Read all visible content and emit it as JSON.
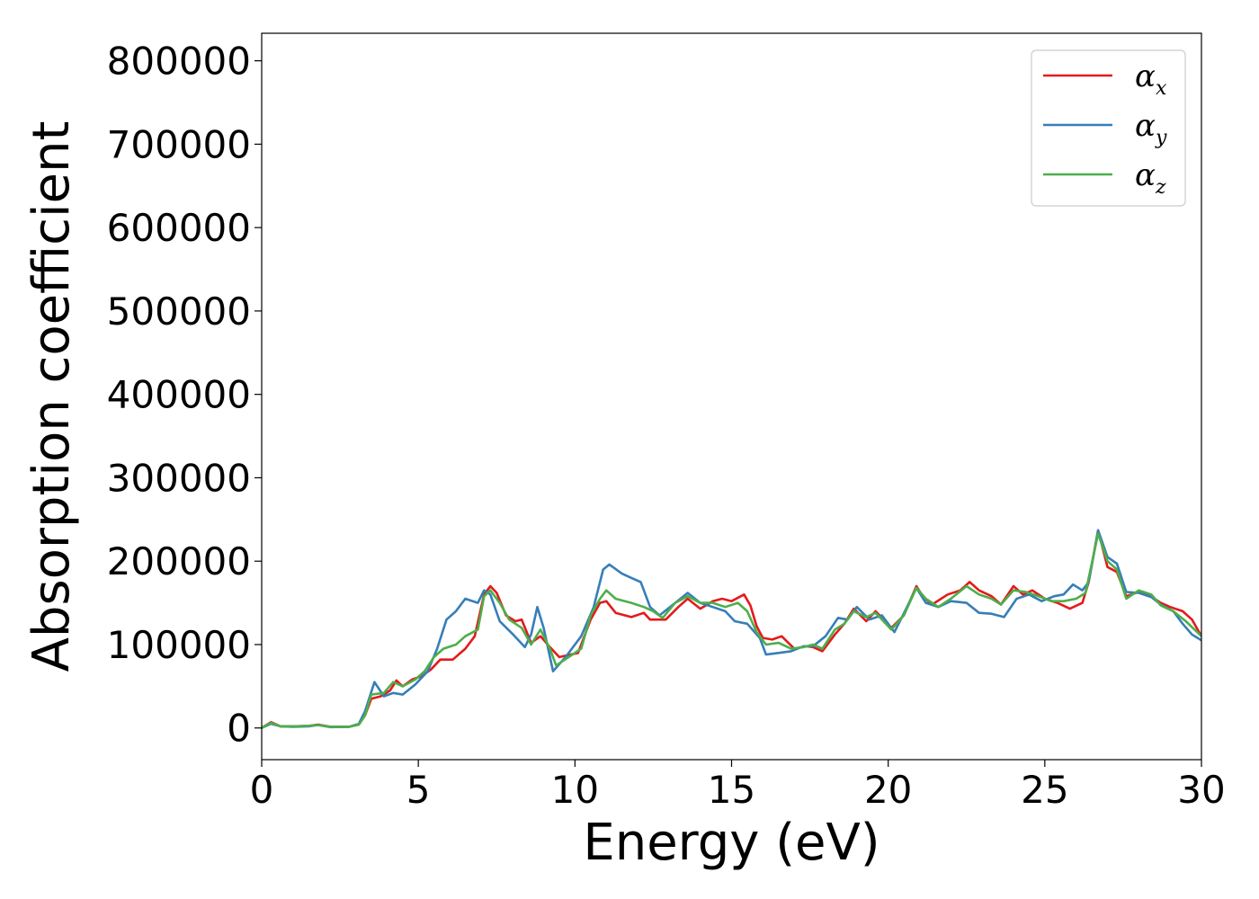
{
  "chart_data": {
    "type": "line",
    "xlabel": "Energy (eV)",
    "ylabel": "Absorption coefficient",
    "xlim": [
      0,
      30
    ],
    "ylim": [
      -38000,
      833000
    ],
    "xticks": [
      0,
      5,
      10,
      15,
      20,
      25,
      30
    ],
    "yticks": [
      0,
      100000,
      200000,
      300000,
      400000,
      500000,
      600000,
      700000,
      800000
    ],
    "legend_position": "top-right",
    "grid": false,
    "series": [
      {
        "name": "αx",
        "base": "α",
        "sub": "x",
        "color": "#e41a1c",
        "points": [
          [
            0,
            0
          ],
          [
            0.3,
            7000
          ],
          [
            0.6,
            2000
          ],
          [
            1,
            2000
          ],
          [
            1.5,
            2500
          ],
          [
            1.8,
            4000
          ],
          [
            2.2,
            1500
          ],
          [
            2.8,
            1500
          ],
          [
            3.1,
            4000
          ],
          [
            3.3,
            15000
          ],
          [
            3.5,
            35000
          ],
          [
            3.8,
            38000
          ],
          [
            4.1,
            45000
          ],
          [
            4.3,
            57000
          ],
          [
            4.5,
            50000
          ],
          [
            4.8,
            58000
          ],
          [
            5.1,
            62000
          ],
          [
            5.4,
            70000
          ],
          [
            5.7,
            82000
          ],
          [
            6.1,
            82000
          ],
          [
            6.5,
            95000
          ],
          [
            6.8,
            110000
          ],
          [
            7.1,
            160000
          ],
          [
            7.3,
            170000
          ],
          [
            7.5,
            162000
          ],
          [
            7.8,
            135000
          ],
          [
            8.1,
            128000
          ],
          [
            8.3,
            130000
          ],
          [
            8.6,
            102000
          ],
          [
            8.9,
            110000
          ],
          [
            9.2,
            97000
          ],
          [
            9.5,
            85000
          ],
          [
            10.1,
            90000
          ],
          [
            10.5,
            130000
          ],
          [
            10.8,
            150000
          ],
          [
            11.0,
            152000
          ],
          [
            11.3,
            138000
          ],
          [
            11.8,
            133000
          ],
          [
            12.2,
            138000
          ],
          [
            12.4,
            130000
          ],
          [
            12.9,
            130000
          ],
          [
            13.3,
            145000
          ],
          [
            13.6,
            155000
          ],
          [
            14.0,
            143000
          ],
          [
            14.4,
            152000
          ],
          [
            14.7,
            155000
          ],
          [
            15.0,
            152000
          ],
          [
            15.4,
            160000
          ],
          [
            15.6,
            147000
          ],
          [
            15.8,
            122000
          ],
          [
            16.0,
            108000
          ],
          [
            16.3,
            106000
          ],
          [
            16.6,
            110000
          ],
          [
            17.0,
            95000
          ],
          [
            17.4,
            98000
          ],
          [
            17.6,
            97000
          ],
          [
            17.9,
            92000
          ],
          [
            18.3,
            112000
          ],
          [
            18.6,
            125000
          ],
          [
            18.9,
            143000
          ],
          [
            19.3,
            128000
          ],
          [
            19.6,
            140000
          ],
          [
            20.1,
            120000
          ],
          [
            20.5,
            135000
          ],
          [
            20.9,
            170000
          ],
          [
            21.1,
            158000
          ],
          [
            21.4,
            148000
          ],
          [
            21.9,
            160000
          ],
          [
            22.3,
            165000
          ],
          [
            22.6,
            175000
          ],
          [
            22.9,
            165000
          ],
          [
            23.3,
            158000
          ],
          [
            23.6,
            148000
          ],
          [
            24.0,
            170000
          ],
          [
            24.3,
            160000
          ],
          [
            24.6,
            165000
          ],
          [
            25.0,
            155000
          ],
          [
            25.4,
            150000
          ],
          [
            25.8,
            143000
          ],
          [
            26.2,
            150000
          ],
          [
            26.4,
            175000
          ],
          [
            26.7,
            237000
          ],
          [
            27.0,
            193000
          ],
          [
            27.3,
            187000
          ],
          [
            27.6,
            158000
          ],
          [
            28.0,
            163000
          ],
          [
            28.3,
            160000
          ],
          [
            28.7,
            150000
          ],
          [
            29.0,
            145000
          ],
          [
            29.4,
            140000
          ],
          [
            29.7,
            130000
          ],
          [
            30,
            110000
          ]
        ]
      },
      {
        "name": "αy",
        "base": "α",
        "sub": "y",
        "color": "#377eb8",
        "points": [
          [
            0,
            0
          ],
          [
            0.3,
            5000
          ],
          [
            0.6,
            2000
          ],
          [
            1,
            1500
          ],
          [
            1.5,
            2000
          ],
          [
            1.8,
            3500
          ],
          [
            2.2,
            1000
          ],
          [
            2.8,
            1500
          ],
          [
            3.1,
            5000
          ],
          [
            3.3,
            20000
          ],
          [
            3.6,
            55000
          ],
          [
            3.9,
            38000
          ],
          [
            4.2,
            42000
          ],
          [
            4.5,
            40000
          ],
          [
            4.9,
            52000
          ],
          [
            5.3,
            68000
          ],
          [
            5.6,
            95000
          ],
          [
            5.9,
            130000
          ],
          [
            6.2,
            140000
          ],
          [
            6.5,
            155000
          ],
          [
            6.9,
            150000
          ],
          [
            7.1,
            165000
          ],
          [
            7.3,
            160000
          ],
          [
            7.6,
            128000
          ],
          [
            8.0,
            113000
          ],
          [
            8.4,
            97000
          ],
          [
            8.6,
            112000
          ],
          [
            8.8,
            145000
          ],
          [
            9.0,
            120000
          ],
          [
            9.3,
            68000
          ],
          [
            9.7,
            85000
          ],
          [
            10.2,
            110000
          ],
          [
            10.6,
            145000
          ],
          [
            10.9,
            190000
          ],
          [
            11.1,
            196000
          ],
          [
            11.5,
            185000
          ],
          [
            11.8,
            180000
          ],
          [
            12.1,
            175000
          ],
          [
            12.4,
            145000
          ],
          [
            12.7,
            135000
          ],
          [
            13.2,
            150000
          ],
          [
            13.6,
            162000
          ],
          [
            14.0,
            150000
          ],
          [
            14.4,
            145000
          ],
          [
            14.8,
            140000
          ],
          [
            15.1,
            128000
          ],
          [
            15.5,
            125000
          ],
          [
            15.9,
            108000
          ],
          [
            16.1,
            88000
          ],
          [
            16.5,
            90000
          ],
          [
            16.9,
            92000
          ],
          [
            17.3,
            98000
          ],
          [
            17.6,
            98000
          ],
          [
            18.0,
            110000
          ],
          [
            18.4,
            132000
          ],
          [
            18.7,
            130000
          ],
          [
            19.0,
            145000
          ],
          [
            19.4,
            130000
          ],
          [
            19.8,
            135000
          ],
          [
            20.2,
            115000
          ],
          [
            20.6,
            145000
          ],
          [
            20.9,
            168000
          ],
          [
            21.2,
            150000
          ],
          [
            21.6,
            145000
          ],
          [
            22.0,
            152000
          ],
          [
            22.5,
            150000
          ],
          [
            22.9,
            138000
          ],
          [
            23.3,
            137000
          ],
          [
            23.7,
            133000
          ],
          [
            24.1,
            155000
          ],
          [
            24.5,
            160000
          ],
          [
            24.9,
            152000
          ],
          [
            25.3,
            158000
          ],
          [
            25.6,
            160000
          ],
          [
            25.9,
            172000
          ],
          [
            26.2,
            165000
          ],
          [
            26.4,
            175000
          ],
          [
            26.7,
            237000
          ],
          [
            27.0,
            205000
          ],
          [
            27.3,
            197000
          ],
          [
            27.6,
            163000
          ],
          [
            28.0,
            162000
          ],
          [
            28.4,
            157000
          ],
          [
            28.7,
            148000
          ],
          [
            29.1,
            140000
          ],
          [
            29.4,
            125000
          ],
          [
            29.7,
            112000
          ],
          [
            30,
            105000
          ]
        ]
      },
      {
        "name": "αz",
        "base": "α",
        "sub": "z",
        "color": "#4daf4a",
        "points": [
          [
            0,
            0
          ],
          [
            0.3,
            6000
          ],
          [
            0.6,
            2000
          ],
          [
            1,
            2000
          ],
          [
            1.5,
            2500
          ],
          [
            1.8,
            3500
          ],
          [
            2.2,
            1500
          ],
          [
            2.8,
            1500
          ],
          [
            3.1,
            4000
          ],
          [
            3.3,
            15000
          ],
          [
            3.5,
            40000
          ],
          [
            3.9,
            42000
          ],
          [
            4.2,
            55000
          ],
          [
            4.5,
            50000
          ],
          [
            4.9,
            58000
          ],
          [
            5.2,
            68000
          ],
          [
            5.5,
            85000
          ],
          [
            5.8,
            95000
          ],
          [
            6.2,
            100000
          ],
          [
            6.5,
            110000
          ],
          [
            6.9,
            118000
          ],
          [
            7.1,
            158000
          ],
          [
            7.3,
            165000
          ],
          [
            7.6,
            150000
          ],
          [
            7.9,
            130000
          ],
          [
            8.3,
            120000
          ],
          [
            8.6,
            100000
          ],
          [
            8.9,
            118000
          ],
          [
            9.2,
            95000
          ],
          [
            9.4,
            75000
          ],
          [
            9.8,
            85000
          ],
          [
            10.2,
            95000
          ],
          [
            10.5,
            135000
          ],
          [
            10.8,
            155000
          ],
          [
            11.0,
            165000
          ],
          [
            11.3,
            155000
          ],
          [
            11.8,
            150000
          ],
          [
            12.2,
            145000
          ],
          [
            12.5,
            140000
          ],
          [
            12.8,
            132000
          ],
          [
            13.2,
            150000
          ],
          [
            13.6,
            158000
          ],
          [
            14.0,
            150000
          ],
          [
            14.4,
            150000
          ],
          [
            14.8,
            145000
          ],
          [
            15.2,
            150000
          ],
          [
            15.5,
            140000
          ],
          [
            15.8,
            115000
          ],
          [
            16.1,
            100000
          ],
          [
            16.5,
            102000
          ],
          [
            16.9,
            95000
          ],
          [
            17.3,
            97000
          ],
          [
            17.6,
            100000
          ],
          [
            17.9,
            95000
          ],
          [
            18.3,
            118000
          ],
          [
            18.6,
            125000
          ],
          [
            18.9,
            140000
          ],
          [
            19.3,
            133000
          ],
          [
            19.6,
            138000
          ],
          [
            20.1,
            118000
          ],
          [
            20.5,
            135000
          ],
          [
            20.9,
            168000
          ],
          [
            21.2,
            155000
          ],
          [
            21.6,
            145000
          ],
          [
            22.0,
            155000
          ],
          [
            22.5,
            170000
          ],
          [
            22.9,
            160000
          ],
          [
            23.3,
            155000
          ],
          [
            23.6,
            148000
          ],
          [
            24.0,
            165000
          ],
          [
            24.4,
            163000
          ],
          [
            24.8,
            158000
          ],
          [
            25.2,
            152000
          ],
          [
            25.6,
            152000
          ],
          [
            26.0,
            155000
          ],
          [
            26.3,
            162000
          ],
          [
            26.7,
            233000
          ],
          [
            27.0,
            200000
          ],
          [
            27.3,
            190000
          ],
          [
            27.6,
            155000
          ],
          [
            28.0,
            165000
          ],
          [
            28.4,
            160000
          ],
          [
            28.7,
            147000
          ],
          [
            29.1,
            140000
          ],
          [
            29.5,
            128000
          ],
          [
            30,
            110000
          ]
        ]
      }
    ]
  }
}
